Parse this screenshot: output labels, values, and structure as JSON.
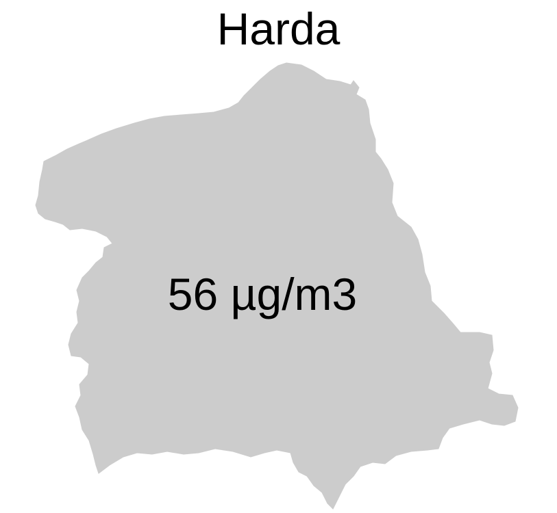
{
  "map": {
    "region_name": "Harda",
    "value_label": "56 µg/m3",
    "fill_color": "#cccccc"
  }
}
